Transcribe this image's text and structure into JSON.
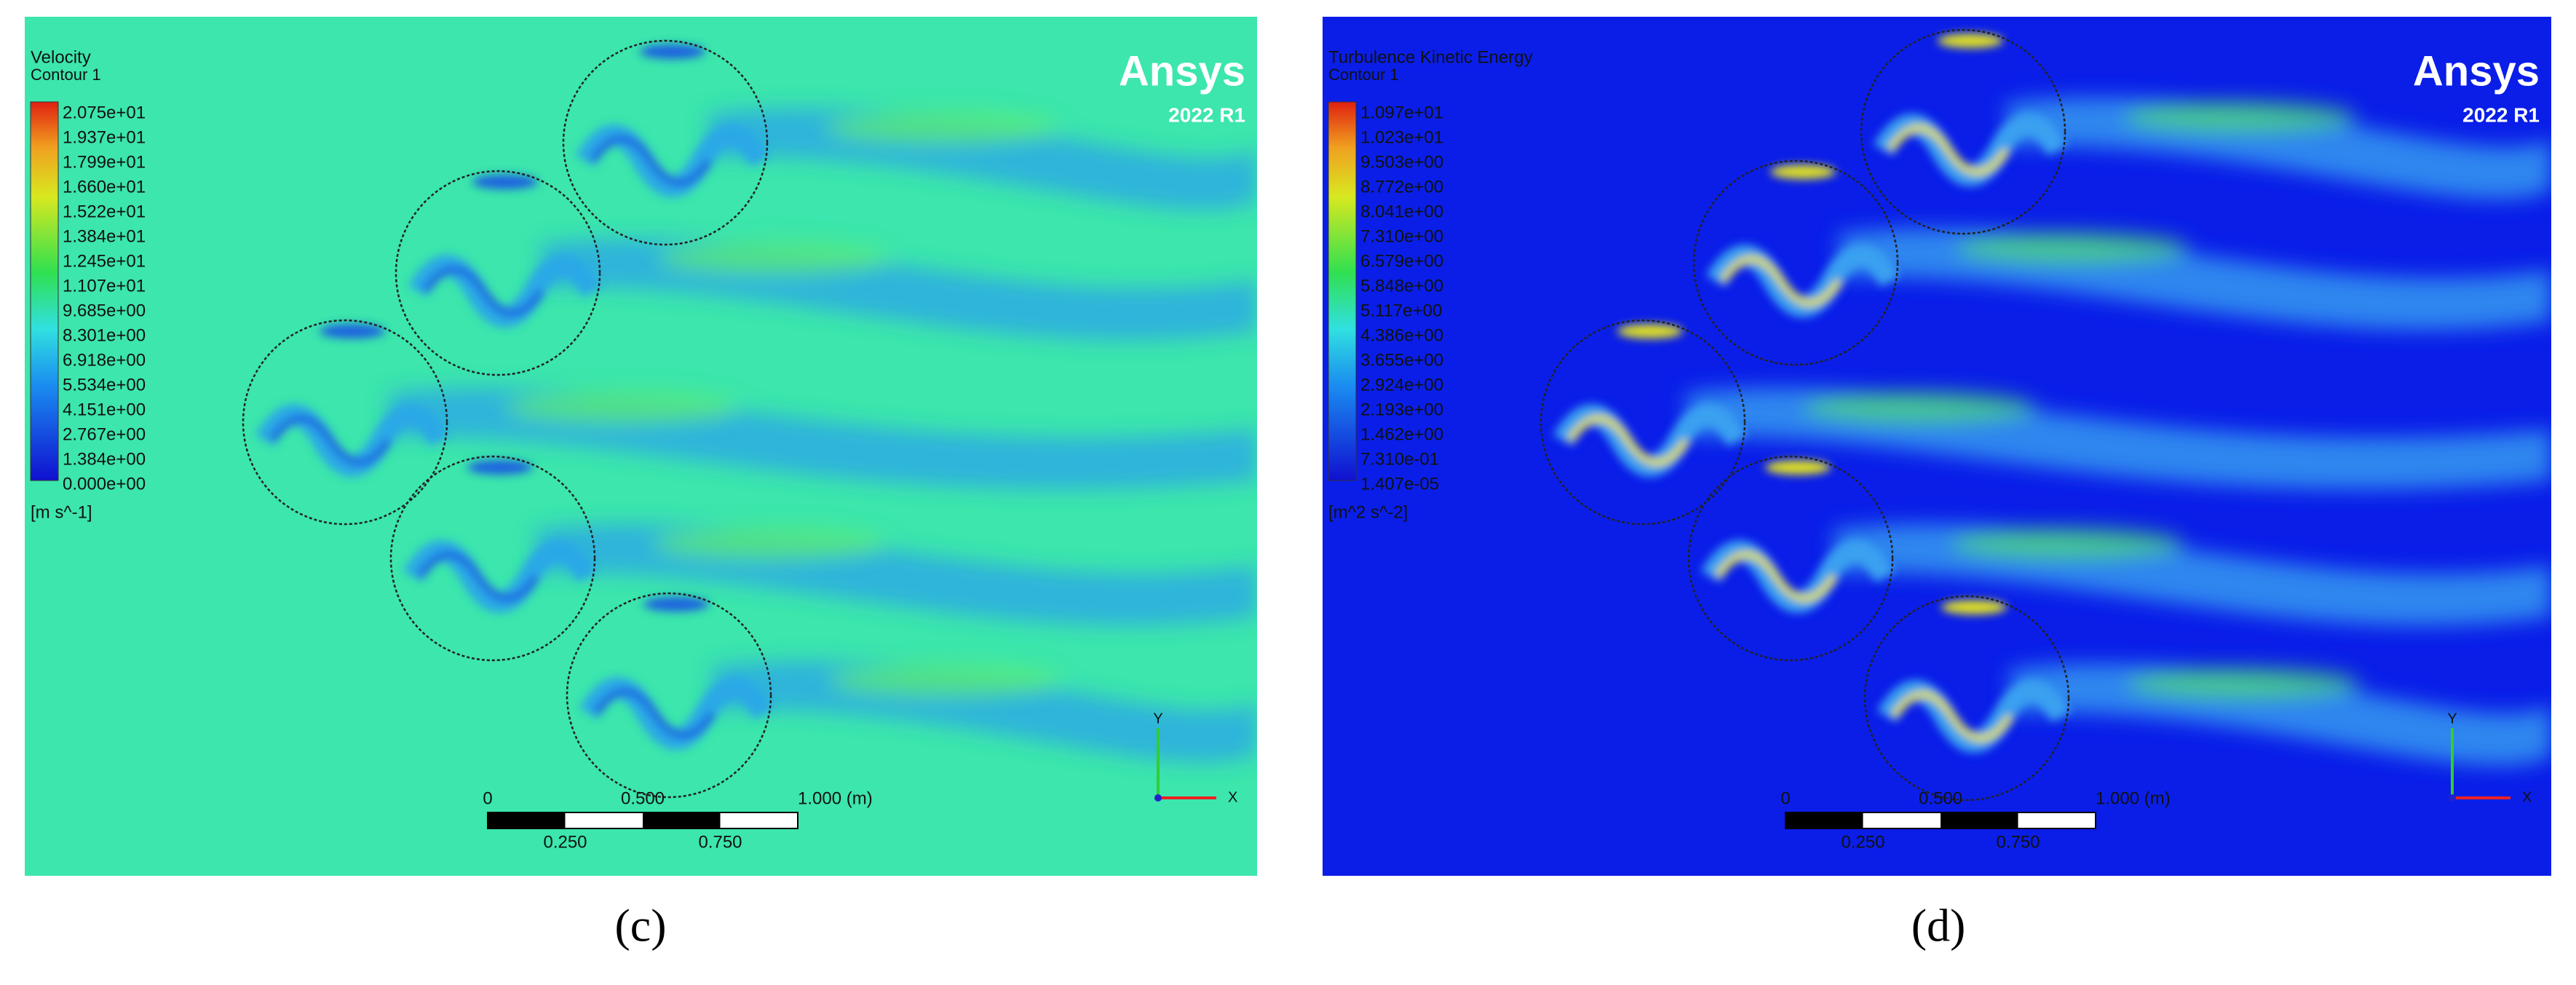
{
  "panels": [
    {
      "title": "Velocity",
      "subtitle": "Contour 1",
      "legend_labels": [
        "2.075e+01",
        "1.937e+01",
        "1.799e+01",
        "1.660e+01",
        "1.522e+01",
        "1.384e+01",
        "1.245e+01",
        "1.107e+01",
        "9.685e+00",
        "8.301e+00",
        "6.918e+00",
        "5.534e+00",
        "4.151e+00",
        "2.767e+00",
        "1.384e+00",
        "0.000e+00"
      ],
      "unit": "[m s^-1]",
      "logo": "Ansys",
      "version": "2022 R1",
      "scale_top": [
        "0",
        "0.500",
        "1.000 (m)"
      ],
      "scale_bottom": [
        "0.250",
        "0.750"
      ],
      "axis_y": "Y",
      "axis_x": "X",
      "caption": "(c)"
    },
    {
      "title": "Turbulence Kinetic Energy",
      "subtitle": "Contour 1",
      "legend_labels": [
        "1.097e+01",
        "1.023e+01",
        "9.503e+00",
        "8.772e+00",
        "8.041e+00",
        "7.310e+00",
        "6.579e+00",
        "5.848e+00",
        "5.117e+00",
        "4.386e+00",
        "3.655e+00",
        "2.924e+00",
        "2.193e+00",
        "1.462e+00",
        "7.310e-01",
        "1.407e-05"
      ],
      "unit": "[m^2 s^-2]",
      "logo": "Ansys",
      "version": "2022 R1",
      "scale_top": [
        "0",
        "0.500",
        "1.000 (m)"
      ],
      "scale_bottom": [
        "0.250",
        "0.750"
      ],
      "axis_y": "Y",
      "axis_x": "X",
      "caption": "(d)"
    }
  ]
}
